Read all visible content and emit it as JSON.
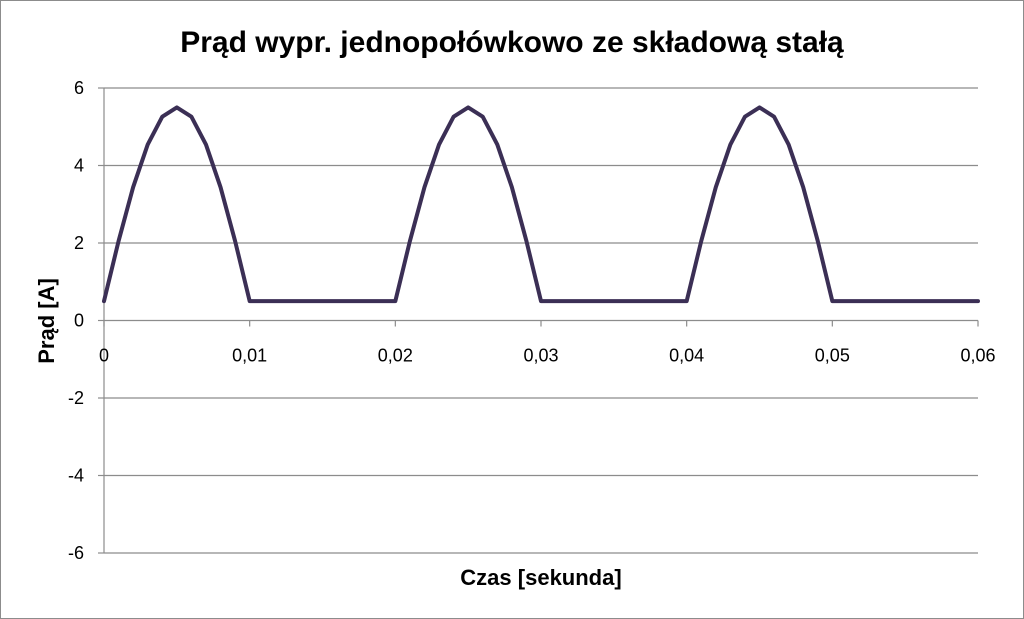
{
  "chart_data": {
    "type": "line",
    "title": "Prąd wypr. jednopołówkowo ze składową stałą",
    "xlabel": "Czas [sekunda]",
    "ylabel": "Prąd [A]",
    "xlim": [
      0,
      0.06
    ],
    "ylim": [
      -6,
      6
    ],
    "x_ticks": [
      "0",
      "0,01",
      "0,02",
      "0,03",
      "0,04",
      "0,05",
      "0,06"
    ],
    "y_ticks": [
      "-6",
      "-4",
      "-2",
      "0",
      "2",
      "4",
      "6"
    ],
    "grid": "horizontal",
    "legend": "none",
    "series": [
      {
        "color": "#3b2f55",
        "x": [
          0,
          0.001,
          0.002,
          0.003,
          0.004,
          0.005,
          0.006,
          0.007,
          0.008,
          0.009,
          0.01,
          0.011,
          0.012,
          0.013,
          0.014,
          0.015,
          0.016,
          0.017,
          0.018,
          0.019,
          0.02,
          0.021,
          0.022,
          0.023,
          0.024,
          0.025,
          0.026,
          0.027,
          0.028,
          0.029,
          0.03,
          0.031,
          0.032,
          0.033,
          0.034,
          0.035,
          0.036,
          0.037,
          0.038,
          0.039,
          0.04,
          0.041,
          0.042,
          0.043,
          0.044,
          0.045,
          0.046,
          0.047,
          0.048,
          0.049,
          0.05,
          0.051,
          0.052,
          0.053,
          0.054,
          0.055,
          0.056,
          0.057,
          0.058,
          0.059,
          0.06
        ],
        "y": [
          0.5,
          2.05,
          3.44,
          4.54,
          5.26,
          5.5,
          5.26,
          4.54,
          3.44,
          2.05,
          0.5,
          0.5,
          0.5,
          0.5,
          0.5,
          0.5,
          0.5,
          0.5,
          0.5,
          0.5,
          0.5,
          2.05,
          3.44,
          4.54,
          5.26,
          5.5,
          5.26,
          4.54,
          3.44,
          2.05,
          0.5,
          0.5,
          0.5,
          0.5,
          0.5,
          0.5,
          0.5,
          0.5,
          0.5,
          0.5,
          0.5,
          2.05,
          3.44,
          4.54,
          5.26,
          5.5,
          5.26,
          4.54,
          3.44,
          2.05,
          0.5,
          0.5,
          0.5,
          0.5,
          0.5,
          0.5,
          0.5,
          0.5,
          0.5,
          0.5,
          0.5
        ]
      }
    ]
  },
  "style": {
    "grid_color": "#8c8c8c",
    "axis_color": "#8c8c8c",
    "line_color": "#3b2f55",
    "frame_color": "#8c8c8c"
  }
}
